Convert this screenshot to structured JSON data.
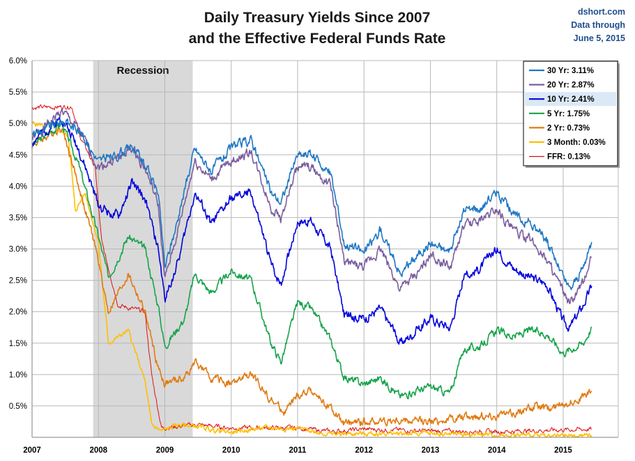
{
  "header": {
    "title_line1": "Daily Treasury Yields Since 2007",
    "title_line2": "and the Effective Federal Funds Rate",
    "source_line1": "dshort.com",
    "source_line2": "Data through",
    "source_line3": "June 5, 2015"
  },
  "chart_data": {
    "type": "line",
    "title": "Daily Treasury Yields Since 2007 and the Effective Federal Funds Rate",
    "xlabel": "",
    "ylabel": "",
    "xlim": [
      2007.0,
      2015.83
    ],
    "ylim": [
      0,
      6
    ],
    "y_ticks": [
      "6.0%",
      "5.5%",
      "5.0%",
      "4.5%",
      "4.0%",
      "3.5%",
      "3.0%",
      "2.5%",
      "2.0%",
      "1.5%",
      "1.0%",
      "0.5%"
    ],
    "x_ticks": [
      "2007",
      "2008",
      "2009",
      "2010",
      "2011",
      "2012",
      "2013",
      "2014",
      "2015"
    ],
    "grid": true,
    "legend_position": "top-right",
    "highlighted_series": "10 Yr: 2.41%",
    "recession": {
      "label": "Recession",
      "start": 2007.92,
      "end": 2009.42
    },
    "series": [
      {
        "name": "30 Yr: 3.11%",
        "color": "#1f77c4",
        "noise": 0.06,
        "x": [
          2007.0,
          2007.45,
          2007.7,
          2008.0,
          2008.3,
          2008.5,
          2008.7,
          2008.9,
          2009.0,
          2009.2,
          2009.45,
          2009.7,
          2010.0,
          2010.3,
          2010.6,
          2010.75,
          2011.0,
          2011.2,
          2011.5,
          2011.7,
          2012.0,
          2012.25,
          2012.55,
          2012.8,
          2013.0,
          2013.3,
          2013.5,
          2013.75,
          2014.0,
          2014.25,
          2014.5,
          2014.75,
          2015.0,
          2015.1,
          2015.3,
          2015.43
        ],
        "y": [
          4.8,
          5.05,
          4.9,
          4.4,
          4.5,
          4.65,
          4.35,
          3.9,
          2.7,
          3.5,
          4.6,
          4.25,
          4.6,
          4.75,
          3.9,
          3.75,
          4.5,
          4.5,
          4.2,
          3.1,
          2.95,
          3.3,
          2.6,
          2.9,
          3.1,
          2.95,
          3.6,
          3.65,
          3.9,
          3.55,
          3.4,
          3.15,
          2.55,
          2.35,
          2.7,
          3.11
        ]
      },
      {
        "name": "20 Yr: 2.87%",
        "color": "#7a5e9e",
        "noise": 0.06,
        "x": [
          2007.0,
          2007.45,
          2007.7,
          2008.0,
          2008.3,
          2008.5,
          2008.7,
          2008.9,
          2009.0,
          2009.2,
          2009.45,
          2009.7,
          2010.0,
          2010.3,
          2010.6,
          2010.75,
          2011.0,
          2011.2,
          2011.5,
          2011.7,
          2012.0,
          2012.25,
          2012.55,
          2012.8,
          2013.0,
          2013.3,
          2013.5,
          2013.75,
          2014.0,
          2014.25,
          2014.5,
          2014.75,
          2015.0,
          2015.1,
          2015.3,
          2015.43
        ],
        "y": [
          4.75,
          5.2,
          4.9,
          4.3,
          4.45,
          4.6,
          4.3,
          3.7,
          2.5,
          3.3,
          4.4,
          4.1,
          4.4,
          4.55,
          3.65,
          3.5,
          4.3,
          4.3,
          4.0,
          2.8,
          2.7,
          3.0,
          2.35,
          2.6,
          2.9,
          2.7,
          3.35,
          3.45,
          3.65,
          3.3,
          3.15,
          2.85,
          2.3,
          2.1,
          2.45,
          2.87
        ]
      },
      {
        "name": "10 Yr: 2.41%",
        "color": "#0000dd",
        "noise": 0.06,
        "x": [
          2007.0,
          2007.45,
          2007.7,
          2008.0,
          2008.3,
          2008.5,
          2008.7,
          2008.9,
          2009.0,
          2009.2,
          2009.45,
          2009.7,
          2010.0,
          2010.3,
          2010.6,
          2010.75,
          2011.0,
          2011.2,
          2011.5,
          2011.7,
          2012.0,
          2012.25,
          2012.55,
          2012.8,
          2013.0,
          2013.3,
          2013.5,
          2013.75,
          2014.0,
          2014.25,
          2014.5,
          2014.75,
          2015.0,
          2015.1,
          2015.3,
          2015.43
        ],
        "y": [
          4.7,
          5.1,
          4.6,
          3.7,
          3.5,
          4.05,
          3.8,
          3.0,
          2.2,
          2.8,
          3.9,
          3.4,
          3.8,
          3.9,
          2.75,
          2.45,
          3.45,
          3.45,
          3.0,
          1.95,
          1.9,
          2.05,
          1.5,
          1.7,
          1.9,
          1.75,
          2.55,
          2.7,
          3.0,
          2.7,
          2.55,
          2.45,
          1.85,
          1.75,
          2.1,
          2.41
        ]
      },
      {
        "name": "5 Yr: 1.75%",
        "color": "#16a34a",
        "noise": 0.05,
        "x": [
          2007.0,
          2007.45,
          2007.7,
          2008.0,
          2008.15,
          2008.45,
          2008.7,
          2008.9,
          2009.0,
          2009.3,
          2009.45,
          2009.7,
          2010.0,
          2010.3,
          2010.6,
          2010.75,
          2011.0,
          2011.2,
          2011.5,
          2011.7,
          2012.0,
          2012.25,
          2012.55,
          2012.8,
          2013.0,
          2013.3,
          2013.5,
          2013.75,
          2014.0,
          2014.25,
          2014.5,
          2014.75,
          2015.0,
          2015.1,
          2015.3,
          2015.43
        ],
        "y": [
          4.65,
          5.0,
          4.35,
          3.2,
          2.55,
          3.2,
          3.0,
          2.1,
          1.45,
          1.9,
          2.6,
          2.3,
          2.65,
          2.5,
          1.5,
          1.2,
          2.15,
          2.05,
          1.55,
          0.95,
          0.85,
          0.95,
          0.65,
          0.75,
          0.8,
          0.7,
          1.4,
          1.45,
          1.7,
          1.6,
          1.7,
          1.65,
          1.35,
          1.4,
          1.5,
          1.75
        ]
      },
      {
        "name": "2 Yr: 0.73%",
        "color": "#e07b12",
        "noise": 0.05,
        "x": [
          2007.0,
          2007.45,
          2007.65,
          2007.95,
          2008.15,
          2008.45,
          2008.7,
          2008.9,
          2009.0,
          2009.3,
          2009.45,
          2009.7,
          2010.0,
          2010.3,
          2010.6,
          2010.8,
          2011.0,
          2011.2,
          2011.5,
          2011.7,
          2012.0,
          2012.5,
          2013.0,
          2013.5,
          2014.0,
          2014.3,
          2014.6,
          2014.8,
          2015.0,
          2015.2,
          2015.43
        ],
        "y": [
          4.65,
          4.95,
          4.2,
          3.05,
          2.0,
          2.6,
          2.0,
          1.1,
          0.85,
          0.95,
          1.2,
          0.95,
          0.85,
          1.0,
          0.6,
          0.4,
          0.65,
          0.75,
          0.45,
          0.2,
          0.25,
          0.27,
          0.25,
          0.33,
          0.35,
          0.4,
          0.5,
          0.45,
          0.55,
          0.6,
          0.73
        ]
      },
      {
        "name": "3 Month: 0.03%",
        "color": "#ffbf00",
        "noise": 0.03,
        "x": [
          2007.0,
          2007.3,
          2007.55,
          2007.65,
          2007.8,
          2008.0,
          2008.15,
          2008.45,
          2008.7,
          2008.8,
          2008.95,
          2009.2,
          2009.45,
          2009.7,
          2010.0,
          2010.5,
          2011.0,
          2011.5,
          2012.0,
          2013.0,
          2014.0,
          2015.0,
          2015.43
        ],
        "y": [
          5.0,
          4.95,
          4.8,
          3.6,
          3.9,
          3.1,
          1.5,
          1.7,
          0.9,
          0.2,
          0.1,
          0.2,
          0.18,
          0.12,
          0.08,
          0.15,
          0.14,
          0.05,
          0.06,
          0.06,
          0.04,
          0.02,
          0.03
        ]
      },
      {
        "name": "FFR: 0.13%",
        "color": "#dd1111",
        "noise": 0.03,
        "x": [
          2007.0,
          2007.6,
          2007.72,
          2007.95,
          2008.05,
          2008.3,
          2008.7,
          2008.8,
          2008.95,
          2009.5,
          2010.0,
          2011.0,
          2011.5,
          2012.0,
          2013.0,
          2014.0,
          2015.0,
          2015.43
        ],
        "y": [
          5.25,
          5.27,
          4.8,
          4.3,
          3.1,
          2.1,
          2.0,
          1.0,
          0.15,
          0.2,
          0.15,
          0.15,
          0.09,
          0.13,
          0.1,
          0.09,
          0.12,
          0.13
        ]
      }
    ]
  }
}
